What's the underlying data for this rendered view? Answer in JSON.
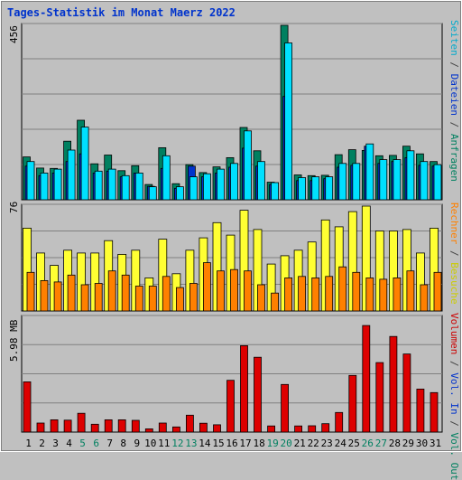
{
  "title": "Tages-Statistik im Monat Maerz 2022",
  "panels": {
    "top": {
      "ymax_label": "456"
    },
    "middle": {
      "ymax_label": "76"
    },
    "bottom": {
      "ymax_label": "5.98 MB"
    }
  },
  "legends": {
    "top": [
      {
        "text": "Anfragen",
        "color": "#008060"
      },
      {
        "text": "/",
        "color": "#444444"
      },
      {
        "text": "Dateien",
        "color": "#0033cc"
      },
      {
        "text": "/",
        "color": "#444444"
      },
      {
        "text": "Seiten",
        "color": "#00aacc"
      }
    ],
    "middle": [
      {
        "text": "Besuche",
        "color": "#cccc00"
      },
      {
        "text": "/",
        "color": "#444444"
      },
      {
        "text": "Rechner",
        "color": "#ff8000"
      }
    ],
    "bottom": [
      {
        "text": "Out",
        "color": "#008060"
      },
      {
        "text": "Vol.",
        "color": "#008060"
      },
      {
        "text": "/",
        "color": "#444444"
      },
      {
        "text": "In",
        "color": "#0033cc"
      },
      {
        "text": "Vol.",
        "color": "#0033cc"
      },
      {
        "text": "/",
        "color": "#444444"
      },
      {
        "text": "Volumen",
        "color": "#cc0000"
      }
    ]
  },
  "colors": {
    "anfragen": "#008060",
    "dateien": "#0033cc",
    "seiten": "#00e0ff",
    "besuche": "#ffff33",
    "rechner": "#ff8000",
    "volumen": "#dd0000",
    "weekday_label": "#000000",
    "weekend_label": "#008060"
  },
  "chart_data": [
    {
      "type": "bar",
      "title": "Tages-Statistik im Monat Maerz 2022",
      "categories": [
        "1",
        "2",
        "3",
        "4",
        "5",
        "6",
        "7",
        "8",
        "9",
        "10",
        "11",
        "12",
        "13",
        "14",
        "15",
        "16",
        "17",
        "18",
        "19",
        "20",
        "21",
        "22",
        "23",
        "24",
        "25",
        "26",
        "27",
        "28",
        "29",
        "30",
        "31"
      ],
      "weekend_days": [
        "5",
        "6",
        "12",
        "13",
        "19",
        "20",
        "26",
        "27"
      ],
      "ylim": [
        0,
        456
      ],
      "series": [
        {
          "name": "Anfragen",
          "values": [
            112,
            83,
            82,
            153,
            208,
            94,
            117,
            76,
            89,
            40,
            136,
            42,
            92,
            71,
            86,
            110,
            189,
            128,
            46,
            456,
            65,
            63,
            64,
            118,
            131,
            129,
            115,
            116,
            140,
            120,
            100
          ]
        },
        {
          "name": "Dateien",
          "values": [
            88,
            63,
            70,
            100,
            120,
            70,
            75,
            60,
            70,
            35,
            82,
            30,
            88,
            60,
            70,
            85,
            135,
            88,
            40,
            270,
            50,
            50,
            55,
            85,
            90,
            140,
            95,
            100,
            110,
            90,
            88
          ]
        },
        {
          "name": "Seiten",
          "values": [
            100,
            70,
            80,
            130,
            190,
            75,
            80,
            63,
            70,
            34,
            115,
            34,
            60,
            68,
            80,
            95,
            180,
            100,
            45,
            410,
            58,
            60,
            60,
            95,
            95,
            146,
            105,
            105,
            128,
            100,
            92
          ]
        }
      ]
    },
    {
      "type": "bar",
      "categories": [
        "1",
        "2",
        "3",
        "4",
        "5",
        "6",
        "7",
        "8",
        "9",
        "10",
        "11",
        "12",
        "13",
        "14",
        "15",
        "16",
        "17",
        "18",
        "19",
        "20",
        "21",
        "22",
        "23",
        "24",
        "25",
        "26",
        "27",
        "28",
        "29",
        "30",
        "31"
      ],
      "ylim": [
        0,
        76
      ],
      "series": [
        {
          "name": "Besuche",
          "values": [
            60,
            42,
            33,
            44,
            42,
            42,
            51,
            41,
            44,
            24,
            52,
            27,
            44,
            53,
            64,
            55,
            73,
            59,
            34,
            40,
            44,
            50,
            66,
            61,
            72,
            76,
            58,
            58,
            59,
            42,
            60
          ]
        },
        {
          "name": "Rechner",
          "values": [
            28,
            22,
            21,
            26,
            19,
            20,
            29,
            26,
            18,
            18,
            25,
            17,
            20,
            35,
            29,
            30,
            29,
            19,
            13,
            24,
            25,
            24,
            25,
            32,
            28,
            24,
            23,
            24,
            29,
            19,
            28
          ]
        }
      ]
    },
    {
      "type": "bar",
      "categories": [
        "1",
        "2",
        "3",
        "4",
        "5",
        "6",
        "7",
        "8",
        "9",
        "10",
        "11",
        "12",
        "13",
        "14",
        "15",
        "16",
        "17",
        "18",
        "19",
        "20",
        "21",
        "22",
        "23",
        "24",
        "25",
        "26",
        "27",
        "28",
        "29",
        "30",
        "31"
      ],
      "ylim": [
        0,
        5.98
      ],
      "ylabel": "MB",
      "series": [
        {
          "name": "Volumen",
          "values": [
            2.62,
            0.47,
            0.64,
            0.62,
            0.98,
            0.41,
            0.64,
            0.64,
            0.61,
            0.17,
            0.47,
            0.27,
            0.88,
            0.46,
            0.38,
            2.7,
            4.5,
            3.9,
            0.32,
            2.48,
            0.32,
            0.33,
            0.44,
            1.02,
            2.95,
            5.55,
            3.62,
            4.98,
            4.07,
            2.24,
            2.06
          ]
        }
      ]
    }
  ]
}
